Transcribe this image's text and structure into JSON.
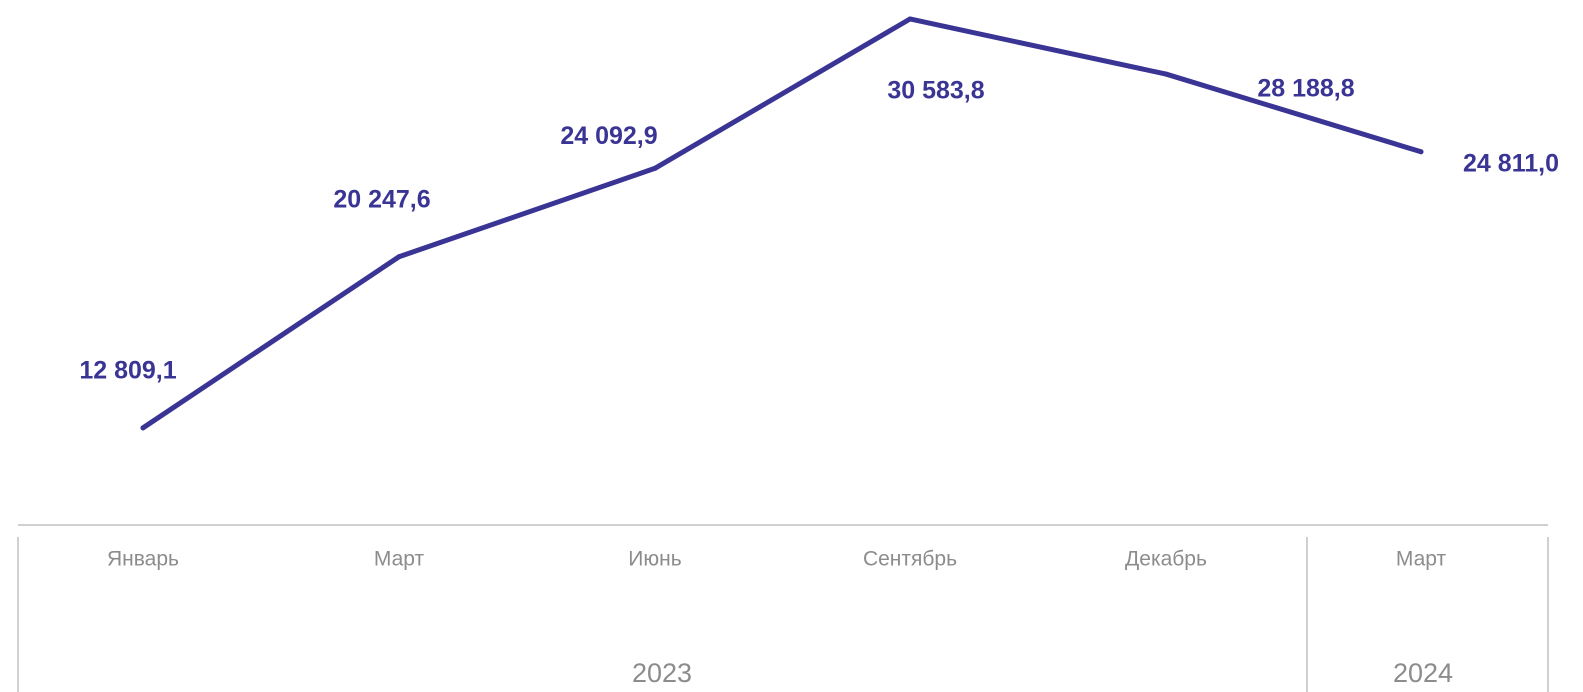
{
  "chart_data": {
    "type": "line",
    "categories": [
      "Январь",
      "Март",
      "Июнь",
      "Сентябрь",
      "Декабрь",
      "Март"
    ],
    "years": [
      {
        "label": "2023",
        "span": [
          0,
          4
        ]
      },
      {
        "label": "2024",
        "span": [
          5,
          5
        ]
      }
    ],
    "series": [
      {
        "values": [
          12809.1,
          20247.6,
          24092.9,
          30583.8,
          28188.8,
          24811.0
        ],
        "data_labels": [
          "12 809,1",
          "20 247,6",
          "24 092,9",
          "30 583,8",
          "28 188,8",
          "24 811,0"
        ],
        "color": "#3a3594"
      }
    ],
    "ylim": [
      11500,
      30800
    ],
    "grid": false,
    "legend": "none",
    "axis_color": "#d0d0d0",
    "label_color": "#8c8c8c"
  }
}
